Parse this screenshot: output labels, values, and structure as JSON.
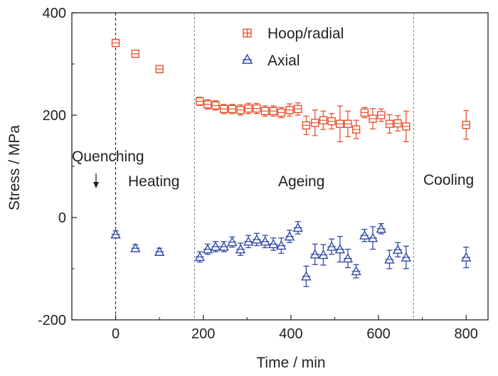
{
  "chart_data": {
    "type": "scatter",
    "title": "",
    "xlabel": "Time / min",
    "ylabel": "Stress / MPa",
    "xlim": [
      -100,
      850
    ],
    "ylim": [
      -200,
      400
    ],
    "xticks": [
      "0",
      "200",
      "400",
      "600",
      "800"
    ],
    "yticks": [
      "-200",
      "0",
      "200",
      "400"
    ],
    "grid": false,
    "legend_position": "top-center",
    "phase_boundaries": [
      0,
      180,
      680
    ],
    "annotations": {
      "quenching": "Quenching",
      "heating": "Heating",
      "ageing": "Ageing",
      "cooling": "Cooling"
    },
    "series": [
      {
        "name": "Hoop/radial",
        "marker": "square",
        "color": "#e8522f",
        "points": [
          {
            "x": 0,
            "y": 341,
            "err": 7
          },
          {
            "x": 45,
            "y": 320,
            "err": 7
          },
          {
            "x": 100,
            "y": 290,
            "err": 7
          },
          {
            "x": 192,
            "y": 227,
            "err": 8
          },
          {
            "x": 210,
            "y": 221,
            "err": 9
          },
          {
            "x": 228,
            "y": 219,
            "err": 9
          },
          {
            "x": 247,
            "y": 212,
            "err": 9
          },
          {
            "x": 266,
            "y": 212,
            "err": 9
          },
          {
            "x": 285,
            "y": 210,
            "err": 10
          },
          {
            "x": 303,
            "y": 213,
            "err": 10
          },
          {
            "x": 322,
            "y": 213,
            "err": 10
          },
          {
            "x": 341,
            "y": 208,
            "err": 10
          },
          {
            "x": 360,
            "y": 208,
            "err": 10
          },
          {
            "x": 378,
            "y": 205,
            "err": 10
          },
          {
            "x": 397,
            "y": 210,
            "err": 12
          },
          {
            "x": 416,
            "y": 212,
            "err": 12
          },
          {
            "x": 435,
            "y": 180,
            "err": 18
          },
          {
            "x": 455,
            "y": 185,
            "err": 25
          },
          {
            "x": 474,
            "y": 190,
            "err": 18
          },
          {
            "x": 493,
            "y": 188,
            "err": 15
          },
          {
            "x": 512,
            "y": 183,
            "err": 35
          },
          {
            "x": 530,
            "y": 183,
            "err": 25
          },
          {
            "x": 549,
            "y": 172,
            "err": 18
          },
          {
            "x": 568,
            "y": 205,
            "err": 10
          },
          {
            "x": 587,
            "y": 193,
            "err": 20
          },
          {
            "x": 606,
            "y": 200,
            "err": 12
          },
          {
            "x": 625,
            "y": 183,
            "err": 18
          },
          {
            "x": 644,
            "y": 184,
            "err": 15
          },
          {
            "x": 663,
            "y": 178,
            "err": 30
          },
          {
            "x": 800,
            "y": 181,
            "err": 28
          }
        ]
      },
      {
        "name": "Axial",
        "marker": "triangle",
        "color": "#2f48a8",
        "points": [
          {
            "x": 0,
            "y": -33,
            "err": 7
          },
          {
            "x": 45,
            "y": -60,
            "err": 7
          },
          {
            "x": 100,
            "y": -67,
            "err": 7
          },
          {
            "x": 192,
            "y": -77,
            "err": 10
          },
          {
            "x": 210,
            "y": -62,
            "err": 10
          },
          {
            "x": 228,
            "y": -57,
            "err": 10
          },
          {
            "x": 247,
            "y": -57,
            "err": 10
          },
          {
            "x": 266,
            "y": -48,
            "err": 10
          },
          {
            "x": 285,
            "y": -62,
            "err": 12
          },
          {
            "x": 303,
            "y": -47,
            "err": 12
          },
          {
            "x": 322,
            "y": -43,
            "err": 12
          },
          {
            "x": 341,
            "y": -47,
            "err": 12
          },
          {
            "x": 360,
            "y": -52,
            "err": 12
          },
          {
            "x": 378,
            "y": -55,
            "err": 15
          },
          {
            "x": 397,
            "y": -37,
            "err": 12
          },
          {
            "x": 416,
            "y": -20,
            "err": 12
          },
          {
            "x": 435,
            "y": -115,
            "err": 20
          },
          {
            "x": 455,
            "y": -72,
            "err": 20
          },
          {
            "x": 474,
            "y": -73,
            "err": 20
          },
          {
            "x": 493,
            "y": -57,
            "err": 15
          },
          {
            "x": 512,
            "y": -62,
            "err": 25
          },
          {
            "x": 530,
            "y": -80,
            "err": 18
          },
          {
            "x": 549,
            "y": -105,
            "err": 13
          },
          {
            "x": 568,
            "y": -35,
            "err": 12
          },
          {
            "x": 587,
            "y": -40,
            "err": 22
          },
          {
            "x": 606,
            "y": -22,
            "err": 10
          },
          {
            "x": 625,
            "y": -82,
            "err": 18
          },
          {
            "x": 644,
            "y": -63,
            "err": 14
          },
          {
            "x": 663,
            "y": -78,
            "err": 22
          },
          {
            "x": 800,
            "y": -78,
            "err": 20
          }
        ]
      }
    ]
  }
}
